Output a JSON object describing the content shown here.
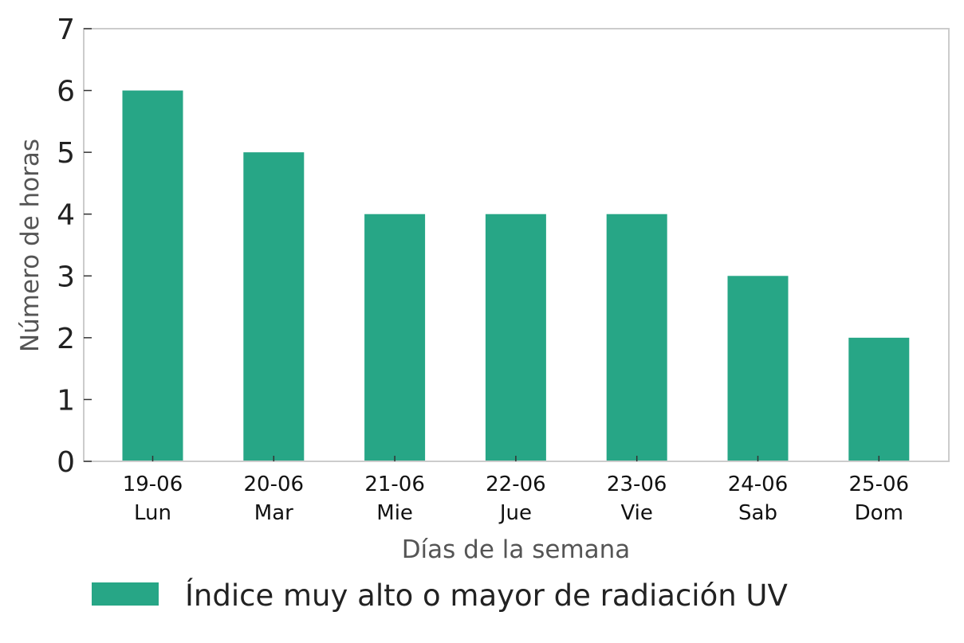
{
  "chart_data": {
    "type": "bar",
    "categories": [
      {
        "date": "19-06",
        "day": "Lun"
      },
      {
        "date": "20-06",
        "day": "Mar"
      },
      {
        "date": "21-06",
        "day": "Mie"
      },
      {
        "date": "22-06",
        "day": "Jue"
      },
      {
        "date": "23-06",
        "day": "Vie"
      },
      {
        "date": "24-06",
        "day": "Sab"
      },
      {
        "date": "25-06",
        "day": "Dom"
      }
    ],
    "series": [
      {
        "name": "Índice muy alto o mayor de radiación UV",
        "values": [
          6,
          5,
          4,
          4,
          4,
          3,
          2
        ],
        "color": "#27a686"
      }
    ],
    "xlabel": "Días de la semana",
    "ylabel": "Número de horas",
    "ylim": [
      0,
      7
    ],
    "yticks": [
      "0",
      "1",
      "2",
      "3",
      "4",
      "5",
      "6",
      "7"
    ],
    "grid": false,
    "legend_position": "bottom-left"
  }
}
